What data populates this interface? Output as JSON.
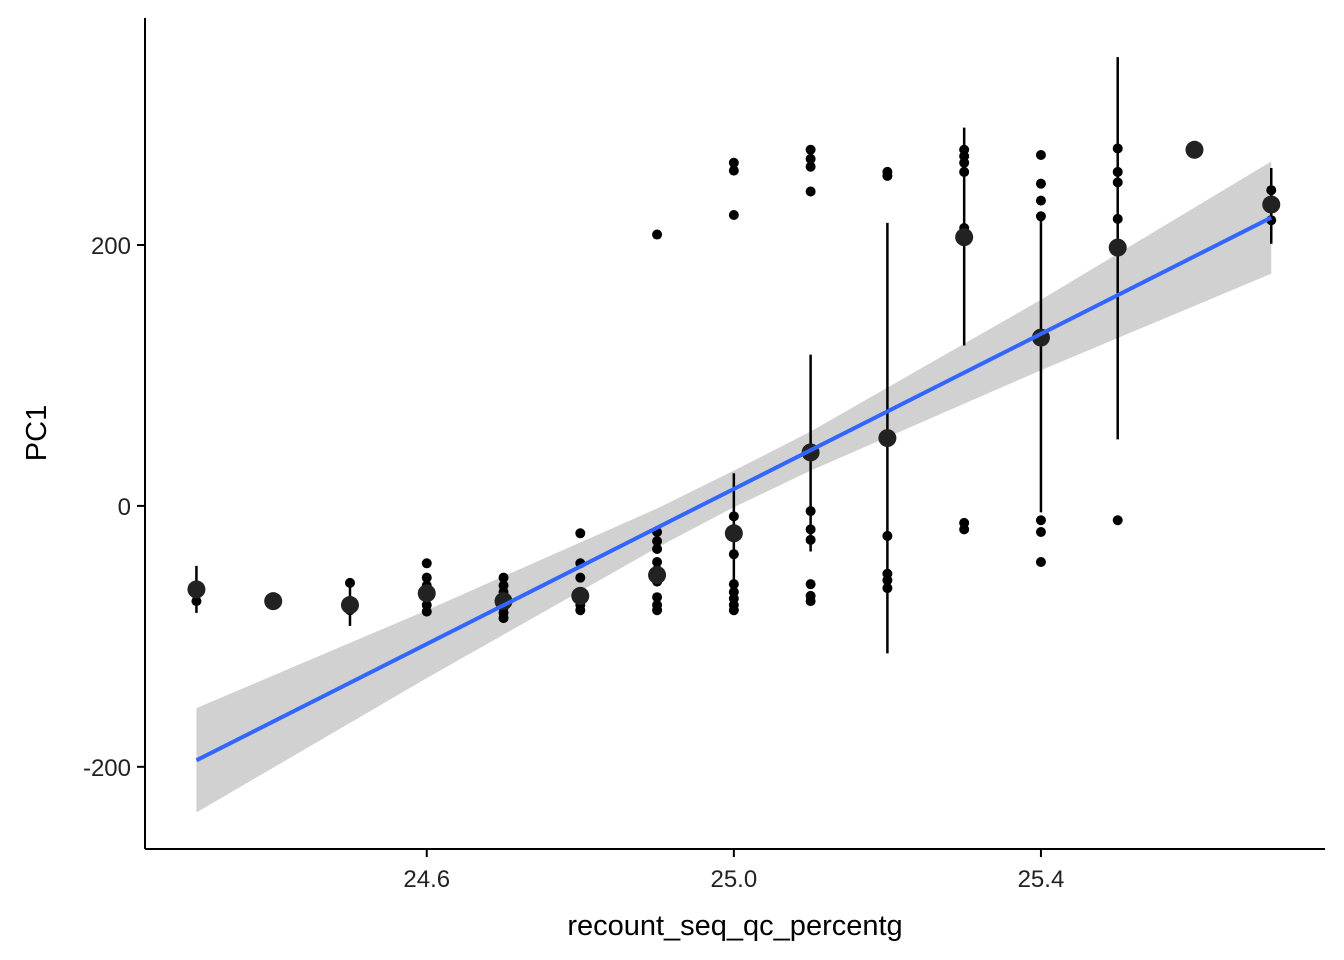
{
  "chart_data": {
    "type": "scatter",
    "xlabel": "recount_seq_qc_percentg",
    "ylabel": "PC1",
    "xlim": [
      24.233,
      25.77
    ],
    "ylim": [
      -263,
      374
    ],
    "xticks": [
      24.6,
      25.0,
      25.4
    ],
    "yticks": [
      -200,
      0,
      200
    ],
    "xtick_labels": [
      "24.6",
      "25.0",
      "25.4"
    ],
    "point_color": "#000000",
    "mean_color": "#222222",
    "line_color": "#3366ff",
    "band_color": "#cccccc",
    "points": {
      "x": [
        24.3,
        24.3,
        24.4,
        24.5,
        24.5,
        24.5,
        24.6,
        24.6,
        24.6,
        24.6,
        24.6,
        24.6,
        24.6,
        24.7,
        24.7,
        24.7,
        24.7,
        24.7,
        24.7,
        24.7,
        24.8,
        24.8,
        24.8,
        24.8,
        24.8,
        24.8,
        24.8,
        24.9,
        24.9,
        24.9,
        24.9,
        24.9,
        24.9,
        24.9,
        24.9,
        24.9,
        24.9,
        25.0,
        25.0,
        25.0,
        25.0,
        25.0,
        25.0,
        25.0,
        25.0,
        25.0,
        25.0,
        25.0,
        25.1,
        25.1,
        25.1,
        25.1,
        25.1,
        25.1,
        25.1,
        25.1,
        25.1,
        25.1,
        25.2,
        25.2,
        25.2,
        25.2,
        25.2,
        25.2,
        25.3,
        25.3,
        25.3,
        25.3,
        25.3,
        25.3,
        25.3,
        25.4,
        25.4,
        25.4,
        25.4,
        25.4,
        25.4,
        25.4,
        25.5,
        25.5,
        25.5,
        25.5,
        25.5,
        25.6,
        25.7,
        25.7,
        25.7
      ],
      "y": [
        -63,
        -73,
        -73,
        -59,
        -76,
        -80,
        -44,
        -55,
        -61,
        -66,
        -70,
        -76,
        -81,
        -55,
        -61,
        -66,
        -72,
        -78,
        -82,
        -86,
        -21,
        -44,
        -55,
        -66,
        -71,
        -76,
        -80,
        208,
        -20,
        -27,
        -33,
        -43,
        -49,
        -58,
        -70,
        -76,
        -80,
        263,
        257,
        223,
        -8,
        -21,
        -37,
        -60,
        -66,
        -71,
        -76,
        -80,
        273,
        266,
        260,
        241,
        -4,
        -18,
        -26,
        -60,
        -69,
        -73,
        256,
        253,
        -23,
        -52,
        -57,
        -63,
        273,
        268,
        263,
        256,
        213,
        -13,
        -18,
        269,
        247,
        234,
        222,
        -11,
        -20,
        -43,
        274,
        256,
        248,
        220,
        -11,
        273,
        242,
        231,
        219
      ]
    },
    "means": {
      "x": [
        24.3,
        24.4,
        24.5,
        24.6,
        24.7,
        24.8,
        24.9,
        25.0,
        25.1,
        25.2,
        25.3,
        25.4,
        25.5,
        25.6,
        25.7
      ],
      "y": [
        -64,
        -73,
        -76,
        -67,
        -73,
        -69,
        -53,
        -21,
        41,
        52,
        206,
        129,
        198,
        273,
        231
      ],
      "ymin": [
        -82,
        null,
        -92,
        null,
        null,
        null,
        null,
        -68,
        -35,
        -113,
        123,
        -5,
        51,
        null,
        201
      ],
      "ymax": [
        -46,
        null,
        -59,
        null,
        null,
        null,
        null,
        25,
        116,
        217,
        290,
        223,
        344,
        null,
        259
      ]
    },
    "fit": {
      "x": [
        24.3,
        25.7
      ],
      "y": [
        -195,
        221
      ]
    },
    "band": {
      "x": [
        24.3,
        24.6,
        24.9,
        25.0,
        25.1,
        25.4,
        25.7
      ],
      "lower": [
        -235,
        -132,
        -32,
        -1,
        27,
        104,
        178
      ],
      "upper": [
        -155,
        -80,
        -2,
        27,
        57,
        158,
        264
      ]
    }
  }
}
